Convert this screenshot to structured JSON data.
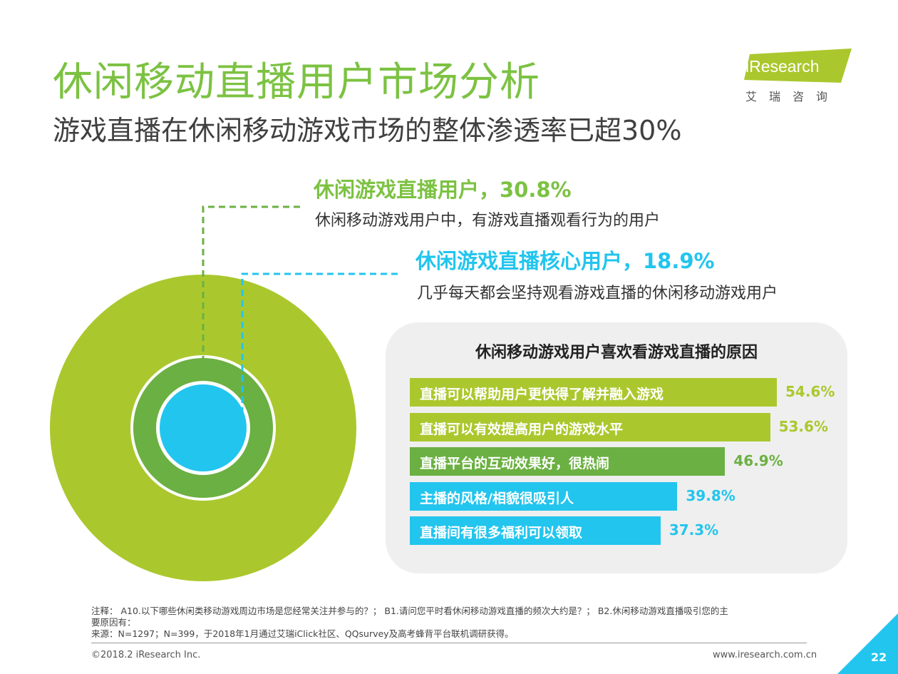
{
  "title": "休闲移动直播用户市场分析",
  "subtitle": "游戏直播在休闲移动游戏市场的整体渗透率已超30%",
  "logo": {
    "text": "iResearch",
    "cn": "艾瑞咨询"
  },
  "colors": {
    "green": "#7cc242",
    "lime": "#aac82d",
    "dark_green": "#6bb042",
    "cyan": "#22c5ee"
  },
  "callouts": [
    {
      "head": "休闲游戏直播用户，30.8%",
      "desc": "休闲移动游戏用户中，有游戏直播观看行为的用户"
    },
    {
      "head": "休闲游戏直播核心用户，18.9%",
      "desc": "几乎每天都会坚持观看游戏直播的休闲移动游戏用户"
    }
  ],
  "chart_data": [
    {
      "type": "pie",
      "categories": [
        "休闲游戏直播用户",
        "休闲游戏直播核心用户"
      ],
      "values": [
        30.8,
        18.9
      ]
    },
    {
      "type": "bar",
      "orientation": "horizontal",
      "title": "休闲移动游戏用户喜欢看游戏直播的原因",
      "categories": [
        "直播可以帮助用户更快得了解并融入游戏",
        "直播可以有效提高用户的游戏水平",
        "直播平台的互动效果好，很热闹",
        "主播的风格/相貌很吸引人",
        "直播间有很多福利可以领取"
      ],
      "values": [
        54.6,
        53.6,
        46.9,
        39.8,
        37.3
      ],
      "value_labels": [
        "54.6%",
        "53.6%",
        "46.9%",
        "39.8%",
        "37.3%"
      ],
      "bar_colors": [
        "#aac82d",
        "#aac82d",
        "#6bb042",
        "#22c5ee",
        "#22c5ee"
      ]
    }
  ],
  "notes": {
    "line1": "注释：    A10.以下哪些休闲类移动游戏周边市场是您经常关注并参与的？；  B1.请问您平时看休闲移动游戏直播的频次大约是？；  B2.休闲移动游戏直播吸引您的主",
    "line2": "要原因有：",
    "line3": "来源：N=1297；N=399，于2018年1月通过艾瑞iClick社区、QQsurvey及高考蜂背平台联机调研获得。"
  },
  "footer": {
    "copyright": "©2018.2 iResearch Inc.",
    "url": "www.iresearch.com.cn",
    "page": "22"
  }
}
